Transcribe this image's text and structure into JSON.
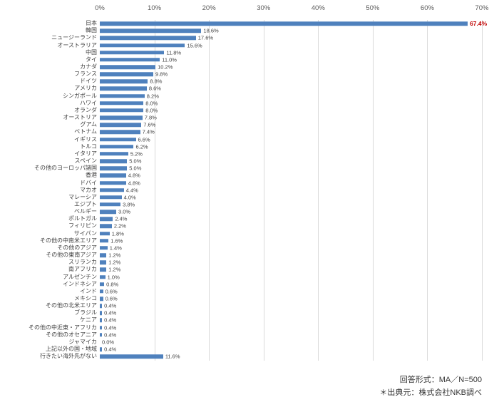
{
  "chart_data": {
    "type": "bar",
    "orientation": "horizontal",
    "title": "",
    "xlabel": "",
    "ylabel": "",
    "xlim": [
      0,
      70
    ],
    "x_ticks": [
      "0%",
      "10%",
      "20%",
      "30%",
      "40%",
      "50%",
      "60%",
      "70%"
    ],
    "grid": true,
    "value_suffix": "%",
    "highlight_index": 0,
    "categories": [
      "日本",
      "韓国",
      "ニュージーランド",
      "オーストラリア",
      "中国",
      "タイ",
      "カナダ",
      "フランス",
      "ドイツ",
      "アメリカ",
      "シンガポール",
      "ハワイ",
      "オランダ",
      "オーストリア",
      "グアム",
      "ベトナム",
      "イギリス",
      "トルコ",
      "イタリア",
      "スペイン",
      "その他のヨーロッパ諸国",
      "香港",
      "ドバイ",
      "マカオ",
      "マレーシア",
      "エジプト",
      "ベルギー",
      "ポルトガル",
      "フィリピン",
      "サイパン",
      "その他の中南米エリア",
      "その他のアジア",
      "その他の東南アジア",
      "スリランカ",
      "南アフリカ",
      "アルゼンチン",
      "インドネシア",
      "インド",
      "メキシコ",
      "その他の北米エリア",
      "ブラジル",
      "ケニア",
      "その他の中近東・アフリカ",
      "その他のオセアニア",
      "ジャマイカ",
      "上記以外の国・地域",
      "行きたい海外先がない"
    ],
    "values": [
      67.4,
      18.6,
      17.6,
      15.6,
      11.8,
      11.0,
      10.2,
      9.8,
      8.8,
      8.6,
      8.2,
      8.0,
      8.0,
      7.8,
      7.6,
      7.4,
      6.6,
      6.2,
      5.2,
      5.0,
      5.0,
      4.8,
      4.8,
      4.4,
      4.0,
      3.8,
      3.0,
      2.4,
      2.2,
      1.8,
      1.6,
      1.4,
      1.2,
      1.2,
      1.2,
      1.0,
      0.8,
      0.6,
      0.6,
      0.4,
      0.4,
      0.4,
      0.4,
      0.4,
      0.0,
      0.4,
      11.6
    ],
    "colors": {
      "bar": "#4f81bd",
      "value_label": "#404040",
      "highlight_value_label": "#c00000",
      "gridline": "#d9d9d9",
      "axis_text": "#595959"
    }
  },
  "footer": {
    "line1": "回答形式：MA／N=500",
    "line2": "＊出典元：株式会社NKB調べ"
  }
}
